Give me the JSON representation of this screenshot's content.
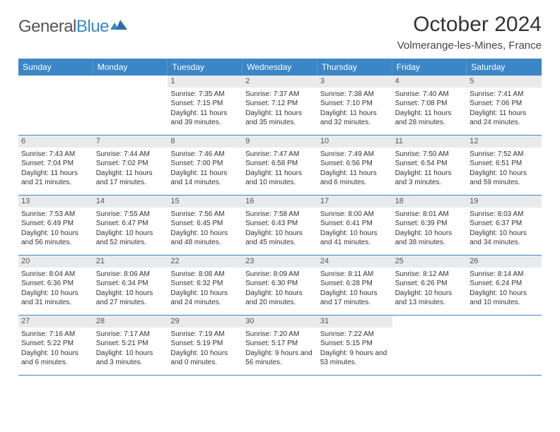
{
  "logo": {
    "textGray": "General",
    "textBlue": "Blue"
  },
  "title": "October 2024",
  "location": "Volmerange-les-Mines, France",
  "colors": {
    "headerBar": "#3b86c6",
    "dayNumBg": "#e9eaec",
    "background": "#ffffff",
    "borderBlue": "#3b86c6"
  },
  "dayNames": [
    "Sunday",
    "Monday",
    "Tuesday",
    "Wednesday",
    "Thursday",
    "Friday",
    "Saturday"
  ],
  "weeks": [
    [
      {
        "num": "",
        "lines": []
      },
      {
        "num": "",
        "lines": []
      },
      {
        "num": "1",
        "lines": [
          "Sunrise: 7:35 AM",
          "Sunset: 7:15 PM",
          "Daylight: 11 hours and 39 minutes."
        ]
      },
      {
        "num": "2",
        "lines": [
          "Sunrise: 7:37 AM",
          "Sunset: 7:12 PM",
          "Daylight: 11 hours and 35 minutes."
        ]
      },
      {
        "num": "3",
        "lines": [
          "Sunrise: 7:38 AM",
          "Sunset: 7:10 PM",
          "Daylight: 11 hours and 32 minutes."
        ]
      },
      {
        "num": "4",
        "lines": [
          "Sunrise: 7:40 AM",
          "Sunset: 7:08 PM",
          "Daylight: 11 hours and 28 minutes."
        ]
      },
      {
        "num": "5",
        "lines": [
          "Sunrise: 7:41 AM",
          "Sunset: 7:06 PM",
          "Daylight: 11 hours and 24 minutes."
        ]
      }
    ],
    [
      {
        "num": "6",
        "lines": [
          "Sunrise: 7:43 AM",
          "Sunset: 7:04 PM",
          "Daylight: 11 hours and 21 minutes."
        ]
      },
      {
        "num": "7",
        "lines": [
          "Sunrise: 7:44 AM",
          "Sunset: 7:02 PM",
          "Daylight: 11 hours and 17 minutes."
        ]
      },
      {
        "num": "8",
        "lines": [
          "Sunrise: 7:46 AM",
          "Sunset: 7:00 PM",
          "Daylight: 11 hours and 14 minutes."
        ]
      },
      {
        "num": "9",
        "lines": [
          "Sunrise: 7:47 AM",
          "Sunset: 6:58 PM",
          "Daylight: 11 hours and 10 minutes."
        ]
      },
      {
        "num": "10",
        "lines": [
          "Sunrise: 7:49 AM",
          "Sunset: 6:56 PM",
          "Daylight: 11 hours and 6 minutes."
        ]
      },
      {
        "num": "11",
        "lines": [
          "Sunrise: 7:50 AM",
          "Sunset: 6:54 PM",
          "Daylight: 11 hours and 3 minutes."
        ]
      },
      {
        "num": "12",
        "lines": [
          "Sunrise: 7:52 AM",
          "Sunset: 6:51 PM",
          "Daylight: 10 hours and 59 minutes."
        ]
      }
    ],
    [
      {
        "num": "13",
        "lines": [
          "Sunrise: 7:53 AM",
          "Sunset: 6:49 PM",
          "Daylight: 10 hours and 56 minutes."
        ]
      },
      {
        "num": "14",
        "lines": [
          "Sunrise: 7:55 AM",
          "Sunset: 6:47 PM",
          "Daylight: 10 hours and 52 minutes."
        ]
      },
      {
        "num": "15",
        "lines": [
          "Sunrise: 7:56 AM",
          "Sunset: 6:45 PM",
          "Daylight: 10 hours and 48 minutes."
        ]
      },
      {
        "num": "16",
        "lines": [
          "Sunrise: 7:58 AM",
          "Sunset: 6:43 PM",
          "Daylight: 10 hours and 45 minutes."
        ]
      },
      {
        "num": "17",
        "lines": [
          "Sunrise: 8:00 AM",
          "Sunset: 6:41 PM",
          "Daylight: 10 hours and 41 minutes."
        ]
      },
      {
        "num": "18",
        "lines": [
          "Sunrise: 8:01 AM",
          "Sunset: 6:39 PM",
          "Daylight: 10 hours and 38 minutes."
        ]
      },
      {
        "num": "19",
        "lines": [
          "Sunrise: 8:03 AM",
          "Sunset: 6:37 PM",
          "Daylight: 10 hours and 34 minutes."
        ]
      }
    ],
    [
      {
        "num": "20",
        "lines": [
          "Sunrise: 8:04 AM",
          "Sunset: 6:36 PM",
          "Daylight: 10 hours and 31 minutes."
        ]
      },
      {
        "num": "21",
        "lines": [
          "Sunrise: 8:06 AM",
          "Sunset: 6:34 PM",
          "Daylight: 10 hours and 27 minutes."
        ]
      },
      {
        "num": "22",
        "lines": [
          "Sunrise: 8:08 AM",
          "Sunset: 6:32 PM",
          "Daylight: 10 hours and 24 minutes."
        ]
      },
      {
        "num": "23",
        "lines": [
          "Sunrise: 8:09 AM",
          "Sunset: 6:30 PM",
          "Daylight: 10 hours and 20 minutes."
        ]
      },
      {
        "num": "24",
        "lines": [
          "Sunrise: 8:11 AM",
          "Sunset: 6:28 PM",
          "Daylight: 10 hours and 17 minutes."
        ]
      },
      {
        "num": "25",
        "lines": [
          "Sunrise: 8:12 AM",
          "Sunset: 6:26 PM",
          "Daylight: 10 hours and 13 minutes."
        ]
      },
      {
        "num": "26",
        "lines": [
          "Sunrise: 8:14 AM",
          "Sunset: 6:24 PM",
          "Daylight: 10 hours and 10 minutes."
        ]
      }
    ],
    [
      {
        "num": "27",
        "lines": [
          "Sunrise: 7:16 AM",
          "Sunset: 5:22 PM",
          "Daylight: 10 hours and 6 minutes."
        ]
      },
      {
        "num": "28",
        "lines": [
          "Sunrise: 7:17 AM",
          "Sunset: 5:21 PM",
          "Daylight: 10 hours and 3 minutes."
        ]
      },
      {
        "num": "29",
        "lines": [
          "Sunrise: 7:19 AM",
          "Sunset: 5:19 PM",
          "Daylight: 10 hours and 0 minutes."
        ]
      },
      {
        "num": "30",
        "lines": [
          "Sunrise: 7:20 AM",
          "Sunset: 5:17 PM",
          "Daylight: 9 hours and 56 minutes."
        ]
      },
      {
        "num": "31",
        "lines": [
          "Sunrise: 7:22 AM",
          "Sunset: 5:15 PM",
          "Daylight: 9 hours and 53 minutes."
        ]
      },
      {
        "num": "",
        "lines": []
      },
      {
        "num": "",
        "lines": []
      }
    ]
  ]
}
